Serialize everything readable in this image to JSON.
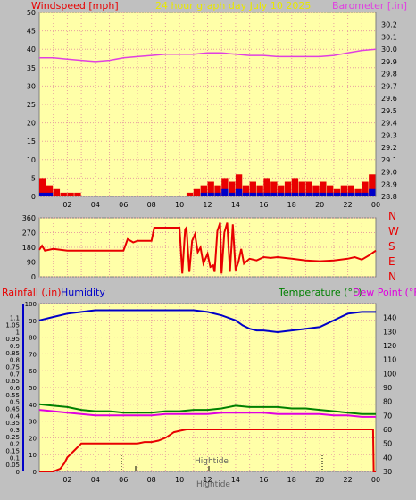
{
  "colors": {
    "background": "#c0c0c0",
    "plot_bg": "#ffffa8",
    "grid": "#e8a0a0",
    "wind": "#e80000",
    "wind_base": "#0000c8",
    "baro": "#e040e0",
    "dir": "#e80000",
    "rain": "#e80000",
    "humidity": "#0000c8",
    "temp": "#008000",
    "dew": "#e000e0",
    "title": "#e8e800"
  },
  "panel1": {
    "left_label": "Windspeed [mph]",
    "title": "24 hour graph day   July 10 2025",
    "right_label": "Barometer [.in]"
  },
  "panel3": {
    "rain_label": "Rainfall (.in)",
    "humidity_label": "Humidity",
    "temp_label": "Temperature (°F)",
    "dew_label": "Dew Point (°F)",
    "tide_label_1": "Hightide",
    "tide_label_2": "Hightide"
  },
  "chart_data": [
    {
      "type": "bar+line",
      "title": "24 hour graph day   July 10 2025",
      "x_tick_labels": [
        "02",
        "04",
        "06",
        "08",
        "10",
        "12",
        "14",
        "16",
        "18",
        "20",
        "22",
        "00"
      ],
      "xlim_hours": [
        0,
        24
      ],
      "y_left": {
        "label": "Windspeed [mph]",
        "lim": [
          0,
          50
        ],
        "ticks": [
          0,
          5,
          10,
          15,
          20,
          25,
          30,
          35,
          40,
          45,
          50
        ]
      },
      "y_right": {
        "label": "Barometer [.in]",
        "lim": [
          28.8,
          30.3
        ],
        "ticks": [
          28.8,
          28.9,
          29.0,
          29.1,
          29.2,
          29.3,
          29.4,
          29.5,
          29.6,
          29.7,
          29.8,
          29.9,
          30.0,
          30.1,
          30.2
        ]
      },
      "series": [
        {
          "name": "Barometer [.in]",
          "axis": "right",
          "x": [
            0,
            1,
            2,
            3,
            4,
            5,
            6,
            7,
            8,
            9,
            10,
            11,
            12,
            13,
            14,
            15,
            16,
            17,
            18,
            19,
            20,
            21,
            22,
            23,
            24
          ],
          "values": [
            29.93,
            29.93,
            29.92,
            29.91,
            29.9,
            29.91,
            29.93,
            29.94,
            29.95,
            29.96,
            29.96,
            29.96,
            29.97,
            29.97,
            29.96,
            29.95,
            29.95,
            29.94,
            29.94,
            29.94,
            29.94,
            29.95,
            29.97,
            29.99,
            30.0
          ]
        },
        {
          "name": "Windspeed [mph]",
          "axis": "left",
          "x": [
            0.0,
            0.5,
            1.0,
            1.5,
            2.0,
            2.5,
            3.0,
            3.5,
            4.0,
            4.5,
            5.0,
            5.5,
            6.0,
            6.5,
            7.0,
            7.5,
            8.0,
            8.5,
            9.0,
            9.5,
            10.0,
            10.5,
            11.0,
            11.5,
            12.0,
            12.5,
            13.0,
            13.5,
            14.0,
            14.5,
            15.0,
            15.5,
            16.0,
            16.5,
            17.0,
            17.5,
            18.0,
            18.5,
            19.0,
            19.5,
            20.0,
            20.5,
            21.0,
            21.5,
            22.0,
            22.5,
            23.0,
            23.5
          ],
          "values": [
            5,
            3,
            2,
            1,
            1,
            1,
            0,
            0,
            0,
            0,
            0,
            0,
            0,
            0,
            0,
            0,
            0,
            0,
            0,
            0,
            0,
            1,
            2,
            3,
            4,
            3,
            5,
            4,
            6,
            3,
            4,
            3,
            5,
            4,
            3,
            4,
            5,
            4,
            4,
            3,
            4,
            3,
            2,
            3,
            3,
            2,
            4,
            6
          ]
        },
        {
          "name": "Wind base",
          "axis": "left",
          "x": [
            0.0,
            0.5,
            1.0,
            1.5,
            2.0,
            2.5,
            3.0,
            3.5,
            4.0,
            4.5,
            5.0,
            5.5,
            6.0,
            6.5,
            7.0,
            7.5,
            8.0,
            8.5,
            9.0,
            9.5,
            10.0,
            10.5,
            11.0,
            11.5,
            12.0,
            12.5,
            13.0,
            13.5,
            14.0,
            14.5,
            15.0,
            15.5,
            16.0,
            16.5,
            17.0,
            17.5,
            18.0,
            18.5,
            19.0,
            19.5,
            20.0,
            20.5,
            21.0,
            21.5,
            22.0,
            22.5,
            23.0,
            23.5
          ],
          "values": [
            1,
            1,
            0,
            0,
            0,
            0,
            0,
            0,
            0,
            0,
            0,
            0,
            0,
            0,
            0,
            0,
            0,
            0,
            0,
            0,
            0,
            0,
            0,
            1,
            1,
            1,
            2,
            1,
            2,
            1,
            1,
            1,
            1,
            1,
            1,
            1,
            1,
            1,
            1,
            1,
            1,
            1,
            1,
            1,
            1,
            1,
            1,
            2
          ]
        }
      ]
    },
    {
      "type": "line",
      "title": "",
      "y_left": {
        "lim": [
          0,
          360
        ],
        "ticks": [
          0,
          90,
          180,
          270,
          360
        ]
      },
      "y_right_labels": [
        "N",
        "W",
        "S",
        "E",
        "N"
      ],
      "x_tick_labels": [],
      "series": [
        {
          "name": "Wind direction",
          "x": [
            0,
            0.2,
            0.4,
            1,
            2,
            3,
            4,
            5,
            6,
            6.3,
            6.7,
            7,
            8,
            8.2,
            9,
            9.5,
            9.8,
            10,
            10.2,
            10.4,
            10.5,
            10.7,
            10.9,
            11.1,
            11.3,
            11.5,
            11.7,
            12,
            12.2,
            12.4,
            12.5,
            12.7,
            12.9,
            13,
            13.2,
            13.4,
            13.6,
            13.8,
            14,
            14.2,
            14.4,
            14.6,
            15,
            15.5,
            16,
            16.5,
            17,
            18,
            19,
            20,
            21,
            22,
            22.5,
            23,
            23.5,
            24
          ],
          "values": [
            165,
            190,
            160,
            170,
            160,
            160,
            160,
            160,
            160,
            230,
            210,
            220,
            220,
            300,
            300,
            300,
            300,
            300,
            20,
            290,
            300,
            30,
            220,
            260,
            150,
            180,
            80,
            140,
            60,
            70,
            30,
            280,
            330,
            20,
            270,
            330,
            30,
            320,
            40,
            90,
            170,
            80,
            110,
            100,
            120,
            115,
            120,
            110,
            100,
            95,
            100,
            110,
            120,
            105,
            130,
            160
          ]
        }
      ]
    },
    {
      "type": "line",
      "title": "",
      "x_tick_labels": [
        "02",
        "04",
        "06",
        "08",
        "10",
        "12",
        "14",
        "16",
        "18",
        "20",
        "22",
        "00"
      ],
      "y_left_outer": {
        "label": "Rainfall (.in)",
        "lim": [
          0,
          1.2
        ],
        "ticks": [
          0,
          0.05,
          0.1,
          0.15,
          0.2,
          0.25,
          0.3,
          0.35,
          0.4,
          0.45,
          0.5,
          0.55,
          0.6,
          0.65,
          0.7,
          0.75,
          0.8,
          0.85,
          0.9,
          0.95,
          1,
          1.05,
          1.1
        ]
      },
      "y_left_inner": {
        "label": "Humidity",
        "lim": [
          0,
          100
        ],
        "ticks": [
          0,
          10,
          20,
          30,
          40,
          50,
          60,
          70,
          80,
          90,
          100
        ]
      },
      "y_right": {
        "label": "Temperature (°F)",
        "lim": [
          30,
          150
        ],
        "ticks": [
          30,
          40,
          50,
          60,
          70,
          80,
          90,
          100,
          110,
          120,
          130,
          140
        ]
      },
      "series": [
        {
          "name": "Humidity",
          "axis": "inner-left",
          "x": [
            0,
            1,
            2,
            3,
            4,
            5,
            6,
            7,
            8,
            9,
            10,
            11,
            12,
            13,
            14,
            14.5,
            15,
            15.5,
            16,
            17,
            18,
            19,
            20,
            21,
            22,
            23,
            24
          ],
          "values": [
            90,
            92,
            94,
            95,
            96,
            96,
            96,
            96,
            96,
            96,
            96,
            96,
            95,
            93,
            90,
            87,
            85,
            84,
            84,
            83,
            84,
            85,
            86,
            90,
            94,
            95,
            95
          ]
        },
        {
          "name": "Temperature (°F)",
          "axis": "right",
          "x": [
            0,
            1,
            2,
            3,
            4,
            5,
            6,
            7,
            8,
            9,
            10,
            11,
            12,
            13,
            14,
            15,
            16,
            17,
            18,
            19,
            20,
            21,
            22,
            23,
            24
          ],
          "values": [
            78,
            77,
            76,
            74,
            73,
            73,
            72,
            72,
            72,
            73,
            73,
            74,
            74,
            75,
            77,
            76,
            76,
            76,
            75,
            75,
            74,
            73,
            72,
            71,
            71
          ]
        },
        {
          "name": "Dew Point (°F)",
          "axis": "right",
          "x": [
            0,
            1,
            2,
            3,
            4,
            5,
            6,
            7,
            8,
            9,
            10,
            11,
            12,
            13,
            14,
            15,
            16,
            17,
            18,
            19,
            20,
            21,
            22,
            23,
            24
          ],
          "values": [
            74,
            73,
            72,
            71,
            70,
            70,
            70,
            70,
            70,
            71,
            71,
            71,
            71,
            72,
            72,
            72,
            72,
            71,
            71,
            71,
            71,
            70,
            70,
            69,
            69
          ]
        },
        {
          "name": "Rainfall (.in)",
          "axis": "outer-left",
          "x": [
            0,
            1,
            1.5,
            1.8,
            2,
            2.5,
            2.8,
            3,
            3.5,
            4,
            5,
            6,
            7,
            7.5,
            8,
            8.5,
            9,
            9.3,
            9.6,
            10,
            10.5,
            11,
            12,
            13,
            14,
            15,
            16,
            17,
            18,
            19,
            20,
            21,
            22,
            23,
            23.8,
            23.85,
            24
          ],
          "values": [
            0,
            0,
            0.02,
            0.06,
            0.1,
            0.15,
            0.18,
            0.2,
            0.2,
            0.2,
            0.2,
            0.2,
            0.2,
            0.21,
            0.21,
            0.22,
            0.24,
            0.26,
            0.28,
            0.29,
            0.3,
            0.3,
            0.3,
            0.3,
            0.3,
            0.3,
            0.3,
            0.3,
            0.3,
            0.3,
            0.3,
            0.3,
            0.3,
            0.3,
            0.3,
            0.0,
            0.0
          ]
        }
      ],
      "annotations": [
        {
          "text": "Hightide",
          "x_hours": 11.0
        },
        {
          "text": "Hightide",
          "x_hours": 10.3
        }
      ]
    }
  ]
}
